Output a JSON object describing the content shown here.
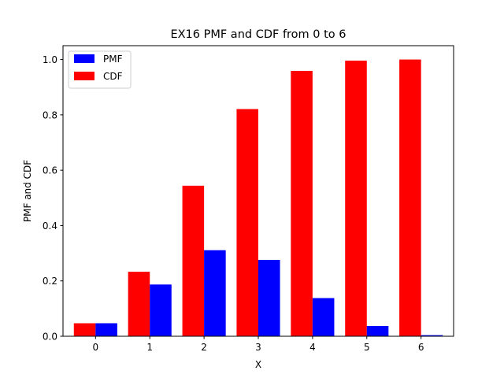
{
  "chart_data": {
    "type": "bar",
    "title": "EX16 PMF and CDF from 0 to 6",
    "xlabel": "X",
    "ylabel": "PMF and CDF",
    "categories": [
      0,
      1,
      2,
      3,
      4,
      5,
      6
    ],
    "series": [
      {
        "name": "PMF",
        "color": "#0000ff",
        "values": [
          0.047,
          0.187,
          0.311,
          0.276,
          0.138,
          0.037,
          0.004
        ]
      },
      {
        "name": "CDF",
        "color": "#ff0000",
        "values": [
          0.047,
          0.233,
          0.544,
          0.821,
          0.959,
          0.996,
          1.0
        ]
      }
    ],
    "ylim": [
      0,
      1.05
    ],
    "yticks": [
      0.0,
      0.2,
      0.4,
      0.6,
      0.8,
      1.0
    ],
    "xlim": [
      -0.6,
      6.6
    ],
    "grid": false,
    "legend": "top-left"
  }
}
